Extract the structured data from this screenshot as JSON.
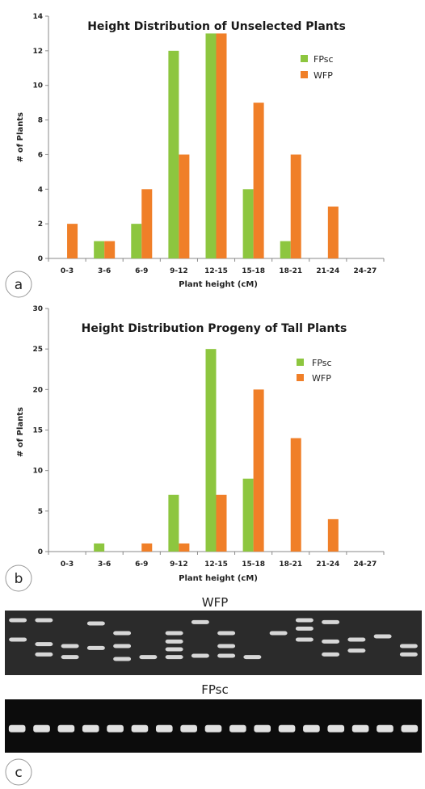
{
  "colors": {
    "FPsc": "#8dc63f",
    "WFP": "#f07f28",
    "axis": "#8a8a8a"
  },
  "chart_data": [
    {
      "type": "bar",
      "panel": "a",
      "title": "Height Distribution of Unselected Plants",
      "xlabel": "Plant height (cM)",
      "ylabel": "# of Plants",
      "ylim": [
        0,
        14
      ],
      "yticks": [
        0,
        2,
        4,
        6,
        8,
        10,
        12,
        14
      ],
      "categories": [
        "0-3",
        "3-6",
        "6-9",
        "9-12",
        "12-15",
        "15-18",
        "18-21",
        "21-24",
        "24-27"
      ],
      "legend_position": "top-right",
      "series": [
        {
          "name": "FPsc",
          "values": [
            0,
            1,
            2,
            12,
            13,
            4,
            1,
            0,
            0
          ]
        },
        {
          "name": "WFP",
          "values": [
            2,
            1,
            4,
            6,
            13,
            9,
            6,
            3,
            0
          ]
        }
      ],
      "data_labels": [
        [
          null,
          "1",
          "2",
          "12",
          "13",
          "4",
          "1",
          null,
          null
        ],
        [
          "2",
          "1",
          "4",
          "6",
          "13",
          "9",
          "6",
          "3",
          null
        ]
      ]
    },
    {
      "type": "bar",
      "panel": "b",
      "title": "Height Distribution Progeny of Tall Plants",
      "xlabel": "Plant height (cM)",
      "ylabel": "# of Plants",
      "ylim": [
        0,
        30
      ],
      "yticks": [
        0,
        5,
        10,
        15,
        20,
        25,
        30
      ],
      "categories": [
        "0-3",
        "3-6",
        "6-9",
        "9-12",
        "12-15",
        "15-18",
        "18-21",
        "21-24",
        "24-27"
      ],
      "legend_position": "top-right",
      "series": [
        {
          "name": "FPsc",
          "values": [
            0,
            1,
            0,
            7,
            25,
            9,
            0,
            0,
            0
          ]
        },
        {
          "name": "WFP",
          "values": [
            0,
            0,
            1,
            1,
            7,
            20,
            14,
            4,
            0
          ]
        }
      ],
      "data_labels": [
        [
          null,
          "1",
          null,
          "7",
          "25",
          "9",
          null,
          null,
          null
        ],
        [
          null,
          null,
          "1",
          "1",
          "7",
          "20",
          "14",
          "4",
          null
        ]
      ]
    }
  ],
  "gels": [
    {
      "panel": "c",
      "title": "WFP",
      "lanes": [
        [
          0.15,
          0.45
        ],
        [
          0.15,
          0.52,
          0.68
        ],
        [
          0.55,
          0.72
        ],
        [
          0.2,
          0.58
        ],
        [
          0.35,
          0.55,
          0.75
        ],
        [
          0.72
        ],
        [
          0.35,
          0.48,
          0.6,
          0.72
        ],
        [
          0.18,
          0.7
        ],
        [
          0.35,
          0.55,
          0.7
        ],
        [
          0.72
        ],
        [
          0.35
        ],
        [
          0.15,
          0.28,
          0.45
        ],
        [
          0.18,
          0.48,
          0.68
        ],
        [
          0.45,
          0.62
        ],
        [
          0.4
        ],
        [
          0.55,
          0.68
        ]
      ]
    },
    {
      "panel": "c",
      "title": "FPsc",
      "lanes": [
        [
          0.55
        ],
        [
          0.55
        ],
        [
          0.55
        ],
        [
          0.55
        ],
        [
          0.55
        ],
        [
          0.55
        ],
        [
          0.55
        ],
        [
          0.55
        ],
        [
          0.55
        ],
        [
          0.55
        ],
        [
          0.55
        ],
        [
          0.55
        ],
        [
          0.55
        ],
        [
          0.55
        ],
        [
          0.55
        ],
        [
          0.55
        ],
        [
          0.55
        ]
      ]
    }
  ],
  "panel_labels": [
    "a",
    "b",
    "c"
  ]
}
